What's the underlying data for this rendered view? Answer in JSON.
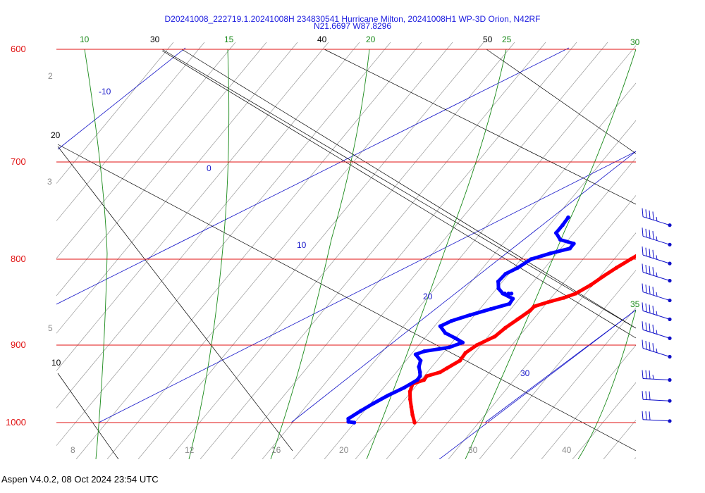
{
  "window": {
    "title_line1": "D20241008_222719.1.20241008H 234830541 Hurricane Milton, 20241008H1 WP-3D Orion, N42RF",
    "title_line2": "N21.6697 W87.8296",
    "footer": "Aspen V4.0.2, 08 Oct 2024  23:54 UTC"
  },
  "colors": {
    "isobar": "#e01010",
    "pressure_label": "#e01010",
    "isotherm": "#000000",
    "dry_adiabat": "#8a8a8a",
    "moist_adiabat": "#1a8a1a",
    "mixing_ratio": "#1414c8",
    "temperature": "#ff0000",
    "dewpoint": "#0000ff",
    "wind_barb": "#1010c8"
  },
  "chart_data": {
    "type": "skew-t",
    "title": "D20241008_222719.1.20241008H 234830541 Hurricane Milton, 20241008H1 WP-3D Orion, N42RF",
    "subtitle": "N21.6697 W87.8296",
    "pressure_range": [
      1000,
      600
    ],
    "isobars": [
      {
        "p": 600,
        "label": "600"
      },
      {
        "p": 700,
        "label": "700"
      },
      {
        "p": 800,
        "label": "800"
      },
      {
        "p": 900,
        "label": "900"
      },
      {
        "p": 1000,
        "label": "1000"
      }
    ],
    "isotherms": [
      {
        "t": 10,
        "label": "10"
      },
      {
        "t": 20,
        "label": "20"
      },
      {
        "t": 30,
        "label": "30"
      },
      {
        "t": 40,
        "label": "40"
      },
      {
        "t": 50,
        "label": "50"
      }
    ],
    "temperature_axis_labels": [
      {
        "t": 8,
        "label": "8"
      },
      {
        "t": 12,
        "label": "12"
      },
      {
        "t": 16,
        "label": "16"
      },
      {
        "t": 20,
        "label": "20"
      },
      {
        "t": 30,
        "label": "30"
      },
      {
        "t": 40,
        "label": "40"
      }
    ],
    "dry_adiabat_labels": [
      "2",
      "3",
      "5"
    ],
    "moist_adiabats": [
      {
        "label": "10"
      },
      {
        "label": "15"
      },
      {
        "label": "20"
      },
      {
        "label": "25"
      },
      {
        "label": "30"
      },
      {
        "label": "35"
      }
    ],
    "mixing_ratio_labels": [
      "-10",
      "0",
      "10",
      "20",
      "30"
    ],
    "temperature_profile": [
      {
        "p": 1000,
        "t": 28.8
      },
      {
        "p": 990,
        "t": 27.6
      },
      {
        "p": 980,
        "t": 26.5
      },
      {
        "p": 970,
        "t": 25.4
      },
      {
        "p": 960,
        "t": 24.4
      },
      {
        "p": 950,
        "t": 23.7
      },
      {
        "p": 945,
        "t": 24.4
      },
      {
        "p": 940,
        "t": 24.2
      },
      {
        "p": 935,
        "t": 25.1
      },
      {
        "p": 930,
        "t": 25.3
      },
      {
        "p": 920,
        "t": 25.7
      },
      {
        "p": 910,
        "t": 25.3
      },
      {
        "p": 900,
        "t": 25.5
      },
      {
        "p": 890,
        "t": 26.3
      },
      {
        "p": 880,
        "t": 26.3
      },
      {
        "p": 870,
        "t": 26.5
      },
      {
        "p": 860,
        "t": 26.7
      },
      {
        "p": 855,
        "t": 26.6
      },
      {
        "p": 850,
        "t": 27.5
      },
      {
        "p": 845,
        "t": 28.6
      },
      {
        "p": 840,
        "t": 29.3
      },
      {
        "p": 830,
        "t": 29.8
      },
      {
        "p": 820,
        "t": 30.0
      },
      {
        "p": 810,
        "t": 30.3
      },
      {
        "p": 800,
        "t": 30.7
      },
      {
        "p": 790,
        "t": 31.2
      },
      {
        "p": 780,
        "t": 31.9
      },
      {
        "p": 770,
        "t": 32.3
      },
      {
        "p": 760,
        "t": 32.4
      },
      {
        "p": 755,
        "t": 32.5
      }
    ],
    "dewpoint_profile": [
      {
        "p": 1000,
        "t": 22.5
      },
      {
        "p": 999,
        "t": 21.8
      },
      {
        "p": 995,
        "t": 21.4
      },
      {
        "p": 985,
        "t": 21.7
      },
      {
        "p": 975,
        "t": 22.1
      },
      {
        "p": 965,
        "t": 22.6
      },
      {
        "p": 955,
        "t": 23.3
      },
      {
        "p": 945,
        "t": 23.7
      },
      {
        "p": 940,
        "t": 23.5
      },
      {
        "p": 935,
        "t": 23.0
      },
      {
        "p": 928,
        "t": 22.2
      },
      {
        "p": 920,
        "t": 21.6
      },
      {
        "p": 912,
        "t": 20.3
      },
      {
        "p": 908,
        "t": 20.8
      },
      {
        "p": 903,
        "t": 22.9
      },
      {
        "p": 897,
        "t": 23.7
      },
      {
        "p": 892,
        "t": 22.4
      },
      {
        "p": 886,
        "t": 20.7
      },
      {
        "p": 878,
        "t": 19.3
      },
      {
        "p": 872,
        "t": 19.8
      },
      {
        "p": 865,
        "t": 21.0
      },
      {
        "p": 858,
        "t": 22.4
      },
      {
        "p": 852,
        "t": 23.7
      },
      {
        "p": 846,
        "t": 23.4
      },
      {
        "p": 840,
        "t": 21.7
      },
      {
        "p": 834,
        "t": 20.6
      },
      {
        "p": 826,
        "t": 19.7
      },
      {
        "p": 817,
        "t": 19.5
      },
      {
        "p": 810,
        "t": 20.0
      },
      {
        "p": 800,
        "t": 20.3
      },
      {
        "p": 794,
        "t": 21.6
      },
      {
        "p": 789,
        "t": 23.0
      },
      {
        "p": 784,
        "t": 22.8
      },
      {
        "p": 780,
        "t": 20.9
      },
      {
        "p": 773,
        "t": 19.6
      },
      {
        "p": 765,
        "t": 19.3
      },
      {
        "p": 757,
        "t": 18.9
      }
    ],
    "dewpoint_isolated_points": [
      {
        "p": 840,
        "t": 21.9
      },
      {
        "p": 840,
        "t": 22.3
      },
      {
        "p": 840,
        "t": 22.6
      }
    ],
    "wind_barbs": [
      {
        "p": 765,
        "speed_kt": 45
      },
      {
        "p": 785,
        "speed_kt": 45
      },
      {
        "p": 805,
        "speed_kt": 45
      },
      {
        "p": 825,
        "speed_kt": 45
      },
      {
        "p": 848,
        "speed_kt": 45
      },
      {
        "p": 870,
        "speed_kt": 45
      },
      {
        "p": 892,
        "speed_kt": 45
      },
      {
        "p": 915,
        "speed_kt": 45
      },
      {
        "p": 945,
        "speed_kt": 35
      },
      {
        "p": 972,
        "speed_kt": 30
      },
      {
        "p": 998,
        "speed_kt": 30
      }
    ]
  }
}
